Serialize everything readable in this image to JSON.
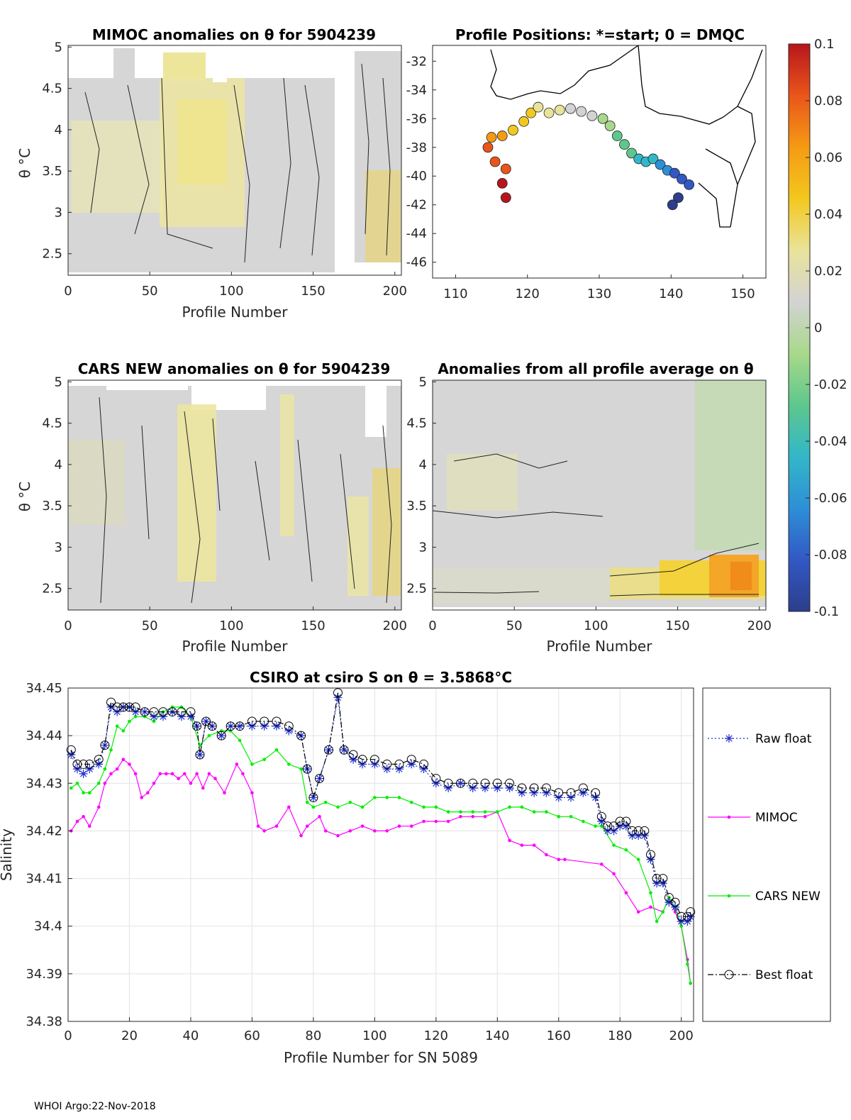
{
  "footer": "WHOI Argo:22-Nov-2018",
  "colors": {
    "raw": "#1f2fd0",
    "mimoc": "#ff00ff",
    "cars": "#00ee00",
    "best": "#000000",
    "grid": "#e3e3e3",
    "anomaly_bg": "#d6d6d6",
    "warm": "#f1ec9c",
    "warm2": "#f4d63a",
    "hot": "#f28a14"
  },
  "colorbar": {
    "ticks": [
      "0.1",
      "0.08",
      "0.06",
      "0.04",
      "0.02",
      "0",
      "-0.02",
      "-0.04",
      "-0.06",
      "-0.08",
      "-0.1"
    ],
    "range": [
      -0.1,
      0.1
    ],
    "stops": [
      "#2c3e8c",
      "#3258c4",
      "#2e8fd6",
      "#32b7c8",
      "#5ec78d",
      "#a8d98a",
      "#d3d3d3",
      "#e9e39a",
      "#f3c81e",
      "#f59a14",
      "#e9551a",
      "#b8161c"
    ]
  },
  "panels": {
    "mimoc": {
      "title": "MIMOC anomalies on θ  for 5904239",
      "xlabel": "Profile Number",
      "ylabel": "θ °C",
      "xticks": [
        "0",
        "50",
        "100",
        "150",
        "200"
      ],
      "yticks": [
        "5",
        "4.5",
        "4",
        "3.5",
        "3",
        "2.5"
      ]
    },
    "map": {
      "title": "Profile Positions: *=start; 0 = DMQC",
      "xticks": [
        "110",
        "120",
        "130",
        "140",
        "150"
      ],
      "yticks": [
        "-32",
        "-34",
        "-36",
        "-38",
        "-40",
        "-42",
        "-44",
        "-46"
      ]
    },
    "cars": {
      "title": "CARS NEW anomalies on θ for 5904239",
      "xlabel": "Profile Number",
      "ylabel": "θ °C",
      "xticks": [
        "0",
        "50",
        "100",
        "150",
        "200"
      ],
      "yticks": [
        "5",
        "4.5",
        "4",
        "3.5",
        "3",
        "2.5"
      ]
    },
    "allavg": {
      "title": "Anomalies from all profile average on θ",
      "xlabel": "Profile Number",
      "xticks": [
        "0",
        "50",
        "100",
        "150",
        "200"
      ],
      "yticks": [
        "5",
        "4.5",
        "4",
        "3.5",
        "3",
        "2.5"
      ]
    }
  },
  "chart_data": {
    "type": "line",
    "title": "CSIRO at csiro S on θ = 3.5868°C",
    "xlabel": "Profile Number for SN 5089",
    "ylabel": "Salinity",
    "xlim": [
      0,
      204
    ],
    "ylim": [
      34.38,
      34.45
    ],
    "xticks": [
      "0",
      "20",
      "40",
      "60",
      "80",
      "100",
      "120",
      "140",
      "160",
      "180",
      "200"
    ],
    "yticks": [
      "34.45",
      "34.44",
      "34.43",
      "34.42",
      "34.41",
      "34.4",
      "34.39",
      "34.38"
    ],
    "legend": [
      "Raw float",
      "MIMOC",
      "CARS NEW",
      "Best float"
    ],
    "series": [
      {
        "name": "Raw float",
        "x": [
          1,
          3,
          5,
          7,
          10,
          12,
          14,
          16,
          18,
          20,
          22,
          25,
          28,
          31,
          34,
          37,
          40,
          42,
          43,
          45,
          47,
          50,
          53,
          56,
          60,
          64,
          68,
          72,
          76,
          78,
          80,
          82,
          85,
          88,
          90,
          93,
          96,
          100,
          104,
          108,
          112,
          116,
          120,
          124,
          128,
          132,
          136,
          140,
          144,
          148,
          152,
          156,
          160,
          164,
          168,
          172,
          174,
          176,
          178,
          180,
          182,
          184,
          186,
          188,
          190,
          192,
          194,
          196,
          198,
          200,
          202,
          203
        ],
        "values": [
          34.436,
          34.433,
          34.432,
          34.433,
          34.434,
          34.438,
          34.446,
          34.445,
          34.446,
          34.446,
          34.445,
          34.445,
          34.444,
          34.444,
          34.445,
          34.444,
          34.444,
          34.442,
          34.436,
          34.443,
          34.442,
          34.44,
          34.442,
          34.442,
          34.442,
          34.442,
          34.442,
          34.441,
          34.44,
          34.433,
          34.427,
          34.431,
          34.437,
          34.448,
          34.437,
          34.435,
          34.434,
          34.434,
          34.433,
          34.433,
          34.434,
          34.433,
          34.43,
          34.429,
          34.43,
          34.429,
          34.429,
          34.429,
          34.429,
          34.428,
          34.428,
          34.428,
          34.427,
          34.427,
          34.428,
          34.427,
          34.422,
          34.42,
          34.42,
          34.421,
          34.421,
          34.419,
          34.419,
          34.419,
          34.414,
          34.409,
          34.409,
          34.405,
          34.404,
          34.401,
          34.401,
          34.402
        ]
      },
      {
        "name": "MIMOC",
        "x": [
          1,
          3,
          5,
          7,
          10,
          12,
          14,
          16,
          18,
          20,
          22,
          24,
          26,
          28,
          30,
          32,
          34,
          36,
          38,
          40,
          42,
          44,
          46,
          48,
          51,
          55,
          57,
          60,
          62,
          64,
          68,
          72,
          76,
          78,
          82,
          84,
          88,
          92,
          96,
          100,
          104,
          108,
          112,
          116,
          120,
          124,
          128,
          132,
          136,
          140,
          144,
          148,
          152,
          156,
          160,
          162,
          174,
          178,
          182,
          186,
          190,
          194,
          196,
          198,
          200,
          202,
          203
        ],
        "values": [
          34.42,
          34.422,
          34.423,
          34.421,
          34.425,
          34.43,
          34.432,
          34.433,
          34.435,
          34.434,
          34.432,
          34.427,
          34.428,
          34.43,
          34.432,
          34.432,
          34.432,
          34.431,
          34.432,
          34.43,
          34.432,
          34.429,
          34.432,
          34.431,
          34.428,
          34.434,
          34.432,
          34.428,
          34.421,
          34.42,
          34.421,
          34.425,
          34.419,
          34.421,
          34.423,
          34.42,
          34.419,
          34.42,
          34.421,
          34.42,
          34.42,
          34.421,
          34.421,
          34.422,
          34.422,
          34.422,
          34.423,
          34.423,
          34.423,
          34.424,
          34.418,
          34.417,
          34.417,
          34.415,
          34.414,
          34.414,
          34.413,
          34.411,
          34.407,
          34.403,
          34.404,
          34.403,
          34.406,
          34.403,
          34.4,
          34.393,
          34.388
        ]
      },
      {
        "name": "CARS NEW",
        "x": [
          1,
          3,
          5,
          7,
          10,
          12,
          14,
          16,
          18,
          20,
          22,
          25,
          28,
          31,
          34,
          37,
          40,
          43,
          46,
          50,
          53,
          56,
          60,
          64,
          68,
          72,
          76,
          78,
          80,
          84,
          88,
          92,
          96,
          100,
          104,
          108,
          112,
          116,
          120,
          124,
          128,
          132,
          136,
          140,
          144,
          148,
          152,
          156,
          160,
          164,
          168,
          172,
          174,
          178,
          182,
          186,
          190,
          192,
          194,
          196,
          198,
          200,
          202,
          203
        ],
        "values": [
          34.429,
          34.43,
          34.428,
          34.428,
          34.43,
          34.433,
          34.437,
          34.442,
          34.441,
          34.443,
          34.444,
          34.444,
          34.443,
          34.445,
          34.446,
          34.446,
          34.444,
          34.438,
          34.44,
          34.441,
          34.441,
          34.439,
          34.434,
          34.435,
          34.437,
          34.434,
          34.433,
          34.426,
          34.425,
          34.426,
          34.425,
          34.426,
          34.425,
          34.427,
          34.427,
          34.427,
          34.426,
          34.425,
          34.425,
          34.424,
          34.424,
          34.424,
          34.424,
          34.424,
          34.425,
          34.425,
          34.424,
          34.424,
          34.423,
          34.423,
          34.422,
          34.421,
          34.421,
          34.417,
          34.416,
          34.414,
          34.407,
          34.401,
          34.403,
          34.406,
          34.404,
          34.4,
          34.392,
          34.388
        ]
      },
      {
        "name": "Best float",
        "x": [
          1,
          3,
          5,
          7,
          10,
          12,
          14,
          16,
          18,
          20,
          22,
          25,
          28,
          31,
          34,
          37,
          40,
          42,
          43,
          45,
          47,
          50,
          53,
          56,
          60,
          64,
          68,
          72,
          76,
          78,
          80,
          82,
          85,
          88,
          90,
          93,
          96,
          100,
          104,
          108,
          112,
          116,
          120,
          124,
          128,
          132,
          136,
          140,
          144,
          148,
          152,
          156,
          160,
          164,
          168,
          172,
          174,
          176,
          178,
          180,
          182,
          184,
          186,
          188,
          190,
          192,
          194,
          196,
          198,
          200,
          202,
          203
        ],
        "values": [
          34.437,
          34.434,
          34.434,
          34.434,
          34.435,
          34.438,
          34.447,
          34.446,
          34.446,
          34.446,
          34.446,
          34.445,
          34.445,
          34.445,
          34.445,
          34.445,
          34.445,
          34.442,
          34.436,
          34.443,
          34.442,
          34.44,
          34.442,
          34.442,
          34.443,
          34.443,
          34.443,
          34.442,
          34.44,
          34.433,
          34.427,
          34.431,
          34.437,
          34.449,
          34.437,
          34.436,
          34.435,
          34.435,
          34.434,
          34.434,
          34.435,
          34.434,
          34.431,
          34.43,
          34.43,
          34.43,
          34.43,
          34.43,
          34.43,
          34.429,
          34.429,
          34.429,
          34.428,
          34.428,
          34.429,
          34.428,
          34.423,
          34.421,
          34.421,
          34.422,
          34.422,
          34.42,
          34.42,
          34.42,
          34.415,
          34.41,
          34.41,
          34.406,
          34.405,
          34.402,
          34.402,
          34.403
        ]
      }
    ]
  }
}
